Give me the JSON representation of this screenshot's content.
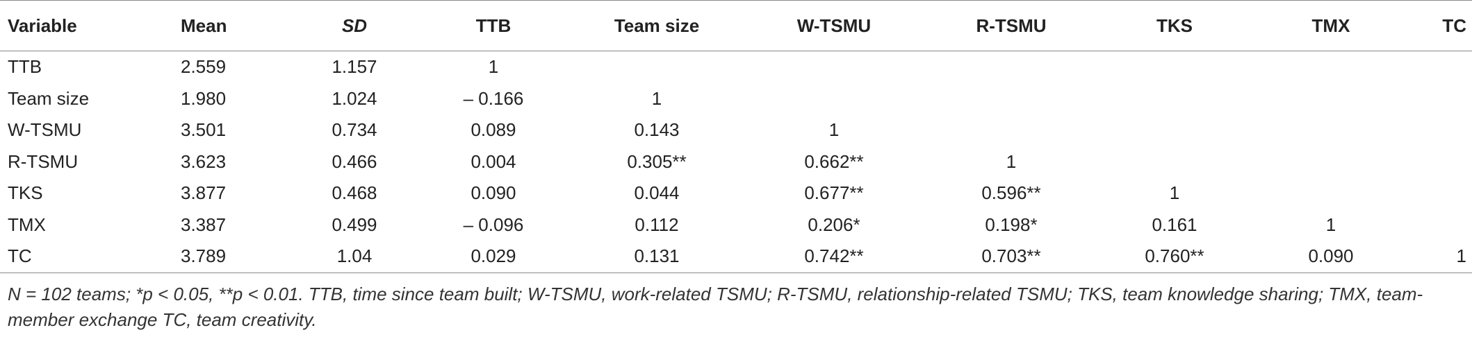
{
  "table": {
    "header": [
      "Variable",
      "Mean",
      "SD",
      "TTB",
      "Team size",
      "W-TSMU",
      "R-TSMU",
      "TKS",
      "TMX",
      "TC"
    ],
    "rows": [
      {
        "variable": "TTB",
        "mean": "2.559",
        "sd": "1.157",
        "correlations": [
          "1"
        ]
      },
      {
        "variable": "Team size",
        "mean": "1.980",
        "sd": "1.024",
        "correlations": [
          "– 0.166",
          "1"
        ]
      },
      {
        "variable": "W-TSMU",
        "mean": "3.501",
        "sd": "0.734",
        "correlations": [
          "0.089",
          "0.143",
          "1"
        ]
      },
      {
        "variable": "R-TSMU",
        "mean": "3.623",
        "sd": "0.466",
        "correlations": [
          "0.004",
          "0.305**",
          "0.662**",
          "1"
        ]
      },
      {
        "variable": "TKS",
        "mean": "3.877",
        "sd": "0.468",
        "correlations": [
          "0.090",
          "0.044",
          "0.677**",
          "0.596**",
          "1"
        ]
      },
      {
        "variable": "TMX",
        "mean": "3.387",
        "sd": "0.499",
        "correlations": [
          "– 0.096",
          "0.112",
          "0.206*",
          "0.198*",
          "0.161",
          "1"
        ]
      },
      {
        "variable": "TC",
        "mean": "3.789",
        "sd": "1.04",
        "correlations": [
          "0.029",
          "0.131",
          "0.742**",
          "0.703**",
          "0.760**",
          "0.090",
          "1"
        ]
      }
    ],
    "footnote": "N = 102 teams; *p < 0.05, **p < 0.01. TTB, time since team built; W-TSMU, work-related TSMU; R-TSMU, relationship-related TSMU; TKS, team knowledge sharing; TMX, team-member exchange TC, team creativity."
  }
}
